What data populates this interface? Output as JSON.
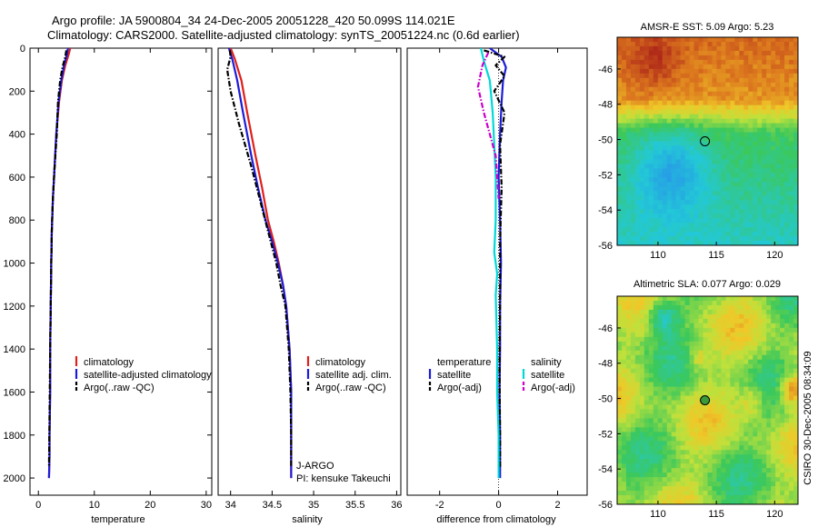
{
  "header": {
    "line1": "Argo profile: JA 5900804_34 24-Dec-2005 20051228_420 50.099S 114.021E",
    "line2": "Climatology: CARS2000. Satellite-adjusted climatology: synTS_20051224.nc (0.6d earlier)"
  },
  "colors": {
    "climatology": "#e0201c",
    "satellite": "#1c1cd6",
    "argo": "#000000",
    "salinity_satellite": "#00d8d8",
    "salinity_argo": "#cc00cc"
  },
  "chart_data": [
    {
      "type": "line",
      "id": "temperature",
      "xlabel": "temperature",
      "ylabel": "",
      "xlim": [
        -1.5,
        31
      ],
      "ylim": [
        2080,
        0
      ],
      "xticks": [
        0,
        10,
        20,
        30
      ],
      "yticks": [
        0,
        200,
        400,
        600,
        800,
        1000,
        1200,
        1400,
        1600,
        1800,
        2000
      ],
      "series": [
        {
          "name": "climatology",
          "style": "solid",
          "colorKey": "climatology",
          "x": [
            5.7,
            5.4,
            4.8,
            4.2,
            3.7,
            3.2,
            2.9,
            2.6,
            2.4,
            2.3,
            2.2,
            2.1,
            2.1,
            2.0,
            2.0,
            1.9
          ],
          "y": [
            0,
            30,
            80,
            150,
            250,
            400,
            550,
            700,
            850,
            1000,
            1200,
            1400,
            1600,
            1800,
            1900,
            2000
          ]
        },
        {
          "name": "satellite-adjusted climatology",
          "style": "solid",
          "colorKey": "satellite",
          "x": [
            5.3,
            5.1,
            4.6,
            4.1,
            3.6,
            3.2,
            2.9,
            2.6,
            2.4,
            2.3,
            2.2,
            2.1,
            2.1,
            2.0,
            2.0,
            1.9
          ],
          "y": [
            0,
            30,
            80,
            150,
            250,
            400,
            550,
            700,
            850,
            1000,
            1200,
            1400,
            1600,
            1800,
            1900,
            2000
          ]
        },
        {
          "name": "Argo(..raw -QC)",
          "style": "dashdot",
          "colorKey": "argo",
          "x": [
            5.0,
            4.8,
            4.3,
            3.9,
            3.5,
            3.3,
            2.9,
            2.6,
            2.4,
            2.3,
            2.2,
            2.1,
            2.0,
            1.9
          ],
          "y": [
            10,
            40,
            90,
            150,
            250,
            400,
            550,
            700,
            850,
            1000,
            1200,
            1400,
            1700,
            1950
          ]
        }
      ],
      "legend": {
        "position": "lower-right",
        "entries": [
          {
            "label": "climatology",
            "colorKey": "climatology",
            "marker": "bar"
          },
          {
            "label": "satellite-adjusted climatology",
            "colorKey": "satellite",
            "marker": "bar"
          },
          {
            "label": "Argo(..raw -QC)",
            "colorKey": "argo",
            "marker": "dashes"
          }
        ]
      }
    },
    {
      "type": "line",
      "id": "salinity",
      "xlabel": "salinity",
      "ylabel": "",
      "xlim": [
        33.85,
        36.05
      ],
      "ylim": [
        2080,
        0
      ],
      "xticks": [
        34,
        34.5,
        35,
        35.5,
        36
      ],
      "yticks": [],
      "series": [
        {
          "name": "climatology",
          "style": "solid",
          "colorKey": "climatology",
          "x": [
            34.0,
            34.05,
            34.13,
            34.2,
            34.3,
            34.38,
            34.45,
            34.52,
            34.58,
            34.63,
            34.67,
            34.71,
            34.73,
            34.73,
            34.73
          ],
          "y": [
            0,
            50,
            150,
            300,
            500,
            650,
            800,
            900,
            1000,
            1100,
            1200,
            1400,
            1600,
            1800,
            2000
          ]
        },
        {
          "name": "satellite adj. clim.",
          "style": "solid",
          "colorKey": "satellite",
          "x": [
            33.98,
            34.02,
            34.08,
            34.15,
            34.25,
            34.33,
            34.42,
            34.5,
            34.57,
            34.63,
            34.67,
            34.71,
            34.73,
            34.73,
            34.73
          ],
          "y": [
            0,
            50,
            150,
            300,
            500,
            650,
            800,
            900,
            1000,
            1100,
            1200,
            1400,
            1600,
            1800,
            2000
          ]
        },
        {
          "name": "Argo(..raw -QC)",
          "style": "dashdot",
          "colorKey": "argo",
          "x": [
            33.99,
            34.0,
            33.96,
            34.0,
            34.1,
            34.25,
            34.35,
            34.45,
            34.55,
            34.6,
            34.66,
            34.7,
            34.72,
            34.73,
            34.73
          ],
          "y": [
            10,
            40,
            100,
            200,
            350,
            550,
            700,
            850,
            1000,
            1100,
            1200,
            1400,
            1600,
            1800,
            1950
          ]
        }
      ],
      "legend": {
        "position": "lower-right",
        "entries": [
          {
            "label": "climatology",
            "colorKey": "climatology",
            "marker": "bar"
          },
          {
            "label": "satellite adj. clim.",
            "colorKey": "satellite",
            "marker": "bar"
          },
          {
            "label": "Argo(..raw -QC)",
            "colorKey": "argo",
            "marker": "dashes"
          }
        ]
      },
      "annotations": [
        "J-ARGO",
        "PI: kensuke Takeuchi"
      ]
    },
    {
      "type": "line",
      "id": "difference",
      "xlabel": "difference from climatology",
      "ylabel": "",
      "xlim": [
        -3.1,
        3.0
      ],
      "ylim": [
        2080,
        0
      ],
      "xticks": [
        -2,
        0,
        2
      ],
      "yticks": [],
      "zero_line": true,
      "series": [
        {
          "name": "temperature satellite",
          "style": "solid",
          "colorKey": "satellite",
          "x": [
            -0.3,
            0.1,
            0.25,
            0.15,
            0.1,
            0.05,
            0.0,
            0.05,
            0.08,
            0.05,
            0.05,
            0.03,
            0.05,
            0.05
          ],
          "y": [
            0,
            40,
            90,
            150,
            250,
            400,
            600,
            800,
            1000,
            1200,
            1400,
            1600,
            1800,
            2000
          ]
        },
        {
          "name": "temperature Argo(-adj)",
          "style": "dashdot",
          "colorKey": "argo",
          "x": [
            -0.5,
            0.2,
            -0.1,
            0.2,
            -0.15,
            0.2,
            0.05,
            0.1,
            0.05,
            0.05,
            0.03,
            0.05,
            0.05
          ],
          "y": [
            10,
            40,
            80,
            130,
            200,
            300,
            450,
            650,
            900,
            1200,
            1500,
            1800,
            1950
          ]
        },
        {
          "name": "salinity satellite",
          "style": "solid",
          "colorKey": "salinity_satellite",
          "x": [
            -0.6,
            -0.5,
            -0.3,
            -0.2,
            -0.15,
            -0.1,
            -0.1,
            -0.15,
            -0.05,
            -0.1,
            -0.05,
            -0.05,
            0.0,
            0.0
          ],
          "y": [
            0,
            60,
            150,
            300,
            450,
            600,
            800,
            950,
            1050,
            1150,
            1400,
            1600,
            1800,
            2000
          ]
        },
        {
          "name": "salinity Argo(-adj)",
          "style": "dashdot",
          "colorKey": "salinity_argo",
          "x": [
            -0.35,
            -0.55,
            -0.7,
            -0.5,
            -0.1,
            0.0
          ],
          "y": [
            20,
            80,
            180,
            300,
            500,
            700
          ]
        }
      ],
      "legend": {
        "position": "lower-center",
        "groups": [
          {
            "heading": "temperature",
            "entries": [
              {
                "label": "satellite",
                "colorKey": "satellite",
                "marker": "bar"
              },
              {
                "label": "Argo(-adj)",
                "colorKey": "argo",
                "marker": "dashes"
              }
            ]
          },
          {
            "heading": "salinity",
            "entries": [
              {
                "label": "satellite",
                "colorKey": "salinity_satellite",
                "marker": "bar"
              },
              {
                "label": "Argo(-adj)",
                "colorKey": "salinity_argo",
                "marker": "dashes"
              }
            ]
          }
        ]
      }
    },
    {
      "type": "heatmap",
      "id": "sst_map",
      "title": "AMSR-E SST: 5.09 Argo: 5.23",
      "xlim": [
        106.5,
        122
      ],
      "ylim": [
        -56,
        -44.2
      ],
      "xticks": [
        110,
        115,
        120
      ],
      "yticks": [
        -46,
        -48,
        -50,
        -52,
        -54,
        -56
      ],
      "argo_position": {
        "lon": 114.021,
        "lat": -50.099
      }
    },
    {
      "type": "heatmap",
      "id": "sla_map",
      "title": "Altimetric SLA: 0.077 Argo: 0.029",
      "xlim": [
        106.5,
        122
      ],
      "ylim": [
        -56,
        -44.2
      ],
      "xticks": [
        110,
        115,
        120
      ],
      "yticks": [
        -46,
        -48,
        -50,
        -52,
        -54,
        -56
      ],
      "argo_position": {
        "lon": 114.021,
        "lat": -50.099
      }
    }
  ],
  "credit": "CSIRO 30-Dec-2005 08:34:09"
}
